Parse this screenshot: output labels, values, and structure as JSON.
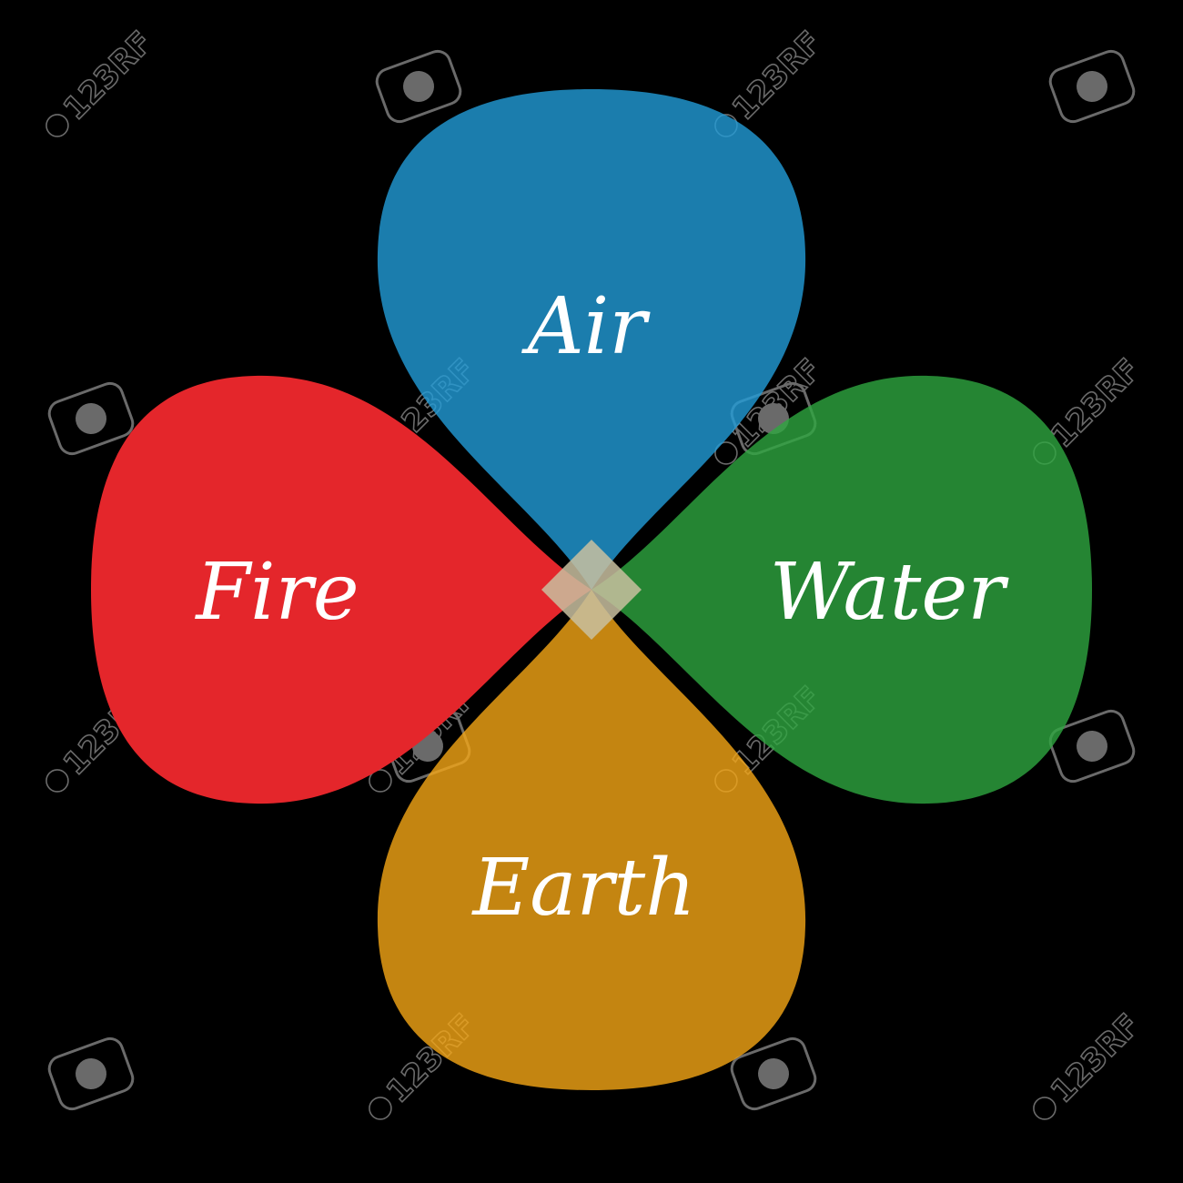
{
  "diagram": {
    "background": "#000000",
    "petals": [
      {
        "id": "air",
        "label": "Air",
        "color": "#229cd8"
      },
      {
        "id": "water",
        "label": "Water",
        "color": "#2ea640"
      },
      {
        "id": "earth",
        "label": "Earth",
        "color": "#f5a615"
      },
      {
        "id": "fire",
        "label": "Fire",
        "color": "#e4262b"
      }
    ],
    "label_color": "#ffffff"
  },
  "watermark": {
    "text": "123RF",
    "color": "#6a6a6a"
  }
}
